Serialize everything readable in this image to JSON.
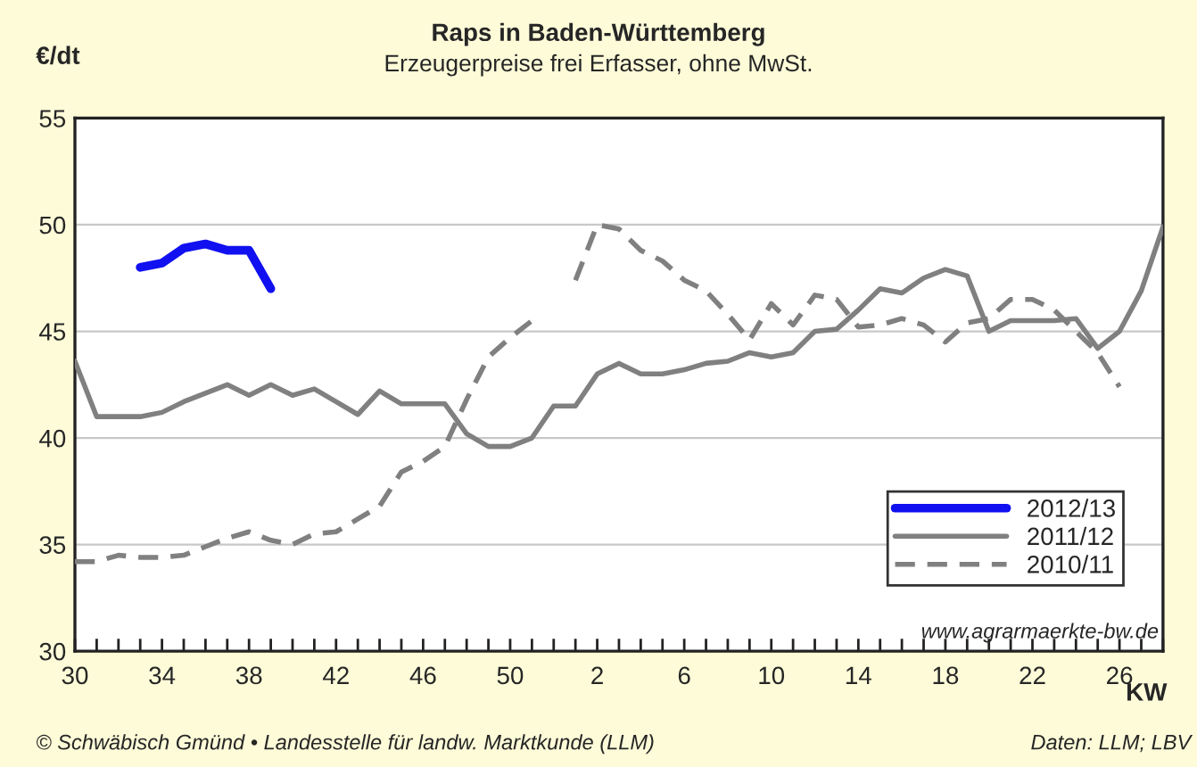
{
  "chart_data": {
    "type": "line",
    "title": "Raps in Baden-Württemberg",
    "subtitle": "Erzeugerpreise frei Erfasser, ohne MwSt.",
    "ylabel": "€/dt",
    "xlabel": "KW",
    "annotations": [
      "www.agrarmaerkte-bw.de",
      "© Schwäbisch Gmünd • Landesstelle für landw. Marktkunde (LLM)",
      "Daten: LLM; LBV"
    ],
    "categories": [
      "30",
      null,
      null,
      null,
      "34",
      null,
      null,
      null,
      "38",
      null,
      null,
      null,
      "42",
      null,
      null,
      null,
      "46",
      null,
      null,
      null,
      "50",
      null,
      null,
      null,
      "2",
      null,
      null,
      null,
      "6",
      null,
      null,
      null,
      "10",
      null,
      null,
      null,
      "14",
      null,
      null,
      null,
      "18",
      null,
      null,
      null,
      "22",
      null,
      null,
      null,
      "26",
      null,
      null
    ],
    "series": [
      {
        "name": "2012/13",
        "color": "#1010f0",
        "line_style": "solid",
        "values": [
          null,
          null,
          null,
          48.0,
          48.2,
          48.9,
          49.1,
          48.8,
          48.8,
          47.0,
          null,
          null,
          null,
          null,
          null,
          null,
          null,
          null,
          null,
          null,
          null,
          null,
          null,
          null,
          null,
          null,
          null,
          null,
          null,
          null,
          null,
          null,
          null,
          null,
          null,
          null,
          null,
          null,
          null,
          null,
          null,
          null,
          null,
          null,
          null,
          null,
          null,
          null,
          null,
          null,
          null
        ]
      },
      {
        "name": "2011/12",
        "color": "#808080",
        "line_style": "solid",
        "values": [
          43.6,
          41.0,
          41.0,
          41.0,
          41.2,
          41.7,
          42.1,
          42.5,
          42.0,
          42.5,
          42.0,
          42.3,
          41.7,
          41.1,
          42.2,
          41.6,
          41.6,
          41.6,
          40.2,
          39.6,
          39.6,
          40.0,
          41.5,
          41.5,
          43.0,
          43.5,
          43.0,
          43.0,
          43.2,
          43.5,
          43.6,
          44.0,
          43.8,
          44.0,
          45.0,
          45.1,
          46.0,
          47.0,
          46.8,
          47.5,
          47.9,
          47.6,
          45.0,
          45.5,
          45.5,
          45.5,
          45.6,
          44.2,
          45.0,
          46.9,
          49.9
        ]
      },
      {
        "name": "2010/11",
        "color": "#808080",
        "line_style": "dashed",
        "values": [
          34.2,
          34.2,
          34.5,
          34.4,
          34.4,
          34.5,
          34.9,
          35.3,
          35.6,
          35.2,
          35.0,
          35.5,
          35.6,
          36.2,
          36.8,
          38.4,
          38.9,
          39.6,
          41.8,
          43.8,
          44.7,
          45.5,
          null,
          47.4,
          50.0,
          49.8,
          48.8,
          48.3,
          47.4,
          46.9,
          45.8,
          44.6,
          46.3,
          45.3,
          46.7,
          46.5,
          45.2,
          45.3,
          45.6,
          45.3,
          44.5,
          45.4,
          45.6,
          46.5,
          46.5,
          46.0,
          45.0,
          44.0,
          42.4,
          null,
          null
        ]
      }
    ],
    "ylim": [
      30,
      55
    ],
    "yticks": [
      30,
      35,
      40,
      45,
      50,
      55
    ],
    "grid": "y",
    "legend": "bottom right",
    "marker": "none"
  }
}
